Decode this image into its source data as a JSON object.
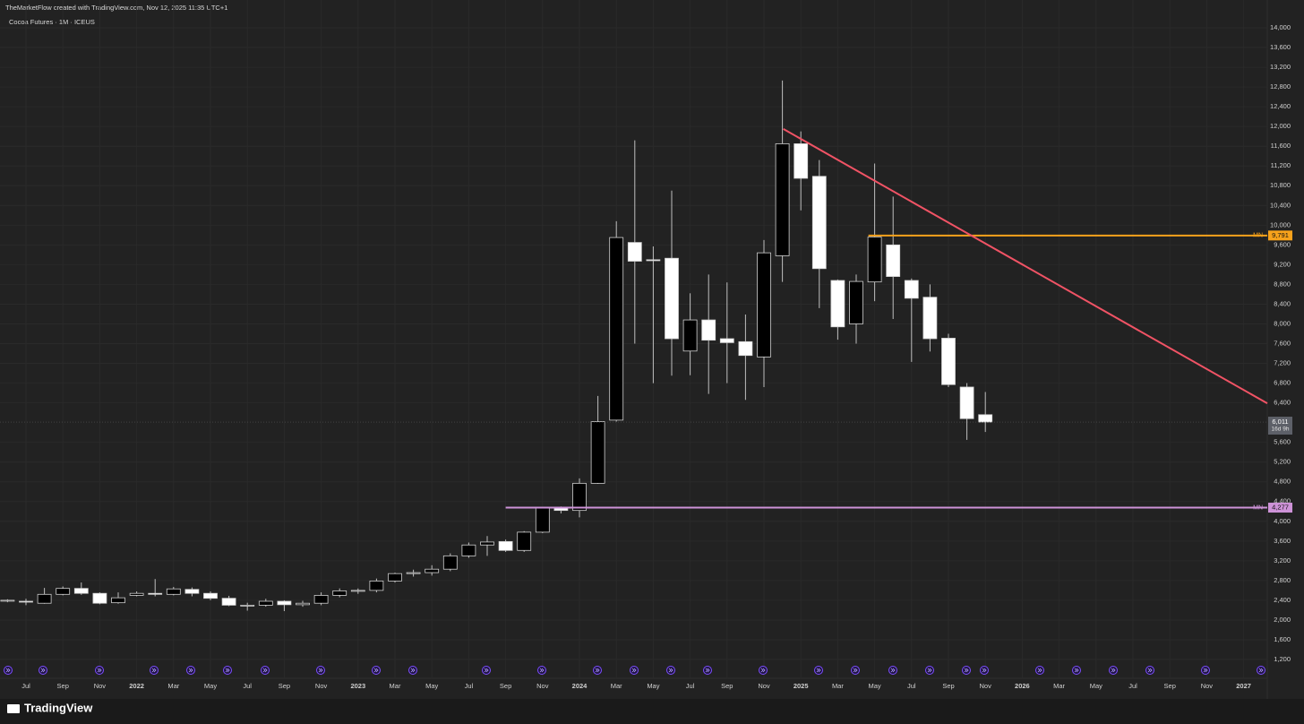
{
  "header": "TheMarketFlow created with TradingView.com, Nov 12, 2025 11:35 UTC+1",
  "footer": "TradingView",
  "chart_data": {
    "type": "candlestick",
    "title": "Cocoa Futures · 1M · ICEUS",
    "x_labels": [
      "Jul",
      "Sep",
      "Nov",
      "2022",
      "Mar",
      "May",
      "Jul",
      "Sep",
      "Nov",
      "2023",
      "Mar",
      "May",
      "Jul",
      "Sep",
      "Nov",
      "2024",
      "Mar",
      "May",
      "Jul",
      "Sep",
      "Nov",
      "2025",
      "Mar",
      "May",
      "Jul",
      "Sep",
      "Nov",
      "2026",
      "Mar",
      "May",
      "Jul",
      "Sep",
      "Nov",
      "2027"
    ],
    "open": [
      2390,
      2380,
      2340,
      2520,
      2640,
      2540,
      2350,
      2500,
      2540,
      2520,
      2620,
      2540,
      2440,
      2300,
      2300,
      2380,
      2310,
      2340,
      2500,
      2590,
      2600,
      2790,
      2940,
      2960,
      3030,
      3300,
      3520,
      3590,
      3410,
      3780,
      4270,
      4220,
      4770,
      6050,
      9650,
      9300,
      9330,
      7450,
      8080,
      7700,
      7640,
      7330,
      9380,
      11650,
      10990,
      8880,
      8000,
      8850,
      9600,
      8880,
      8540,
      7710,
      6720,
      6160
    ],
    "high": [
      2420,
      2430,
      2650,
      2680,
      2760,
      2560,
      2560,
      2580,
      2830,
      2670,
      2660,
      2580,
      2490,
      2350,
      2430,
      2400,
      2390,
      2560,
      2640,
      2640,
      2840,
      2960,
      3020,
      3110,
      3350,
      3570,
      3700,
      3630,
      3800,
      4290,
      4300,
      4870,
      6540,
      10080,
      11720,
      9570,
      10700,
      8620,
      9000,
      8840,
      8190,
      9700,
      12930,
      11900,
      11320,
      8900,
      9000,
      11250,
      10580,
      8920,
      8800,
      7800,
      6800,
      6620
    ],
    "low": [
      2360,
      2300,
      2330,
      2500,
      2510,
      2320,
      2330,
      2480,
      2480,
      2500,
      2480,
      2400,
      2280,
      2190,
      2270,
      2180,
      2270,
      2300,
      2460,
      2530,
      2560,
      2760,
      2880,
      2900,
      2990,
      3260,
      3300,
      3380,
      3380,
      3760,
      4160,
      4080,
      4760,
      6020,
      7600,
      6800,
      6950,
      6960,
      6580,
      6800,
      6460,
      6720,
      8850,
      10300,
      8320,
      7680,
      7600,
      8460,
      8100,
      7230,
      7440,
      6720,
      5650,
      5810
    ],
    "close": [
      2400,
      2370,
      2520,
      2640,
      2540,
      2340,
      2450,
      2540,
      2520,
      2630,
      2540,
      2440,
      2300,
      2300,
      2380,
      2310,
      2340,
      2500,
      2590,
      2600,
      2790,
      2940,
      2960,
      3030,
      3300,
      3520,
      3580,
      3410,
      3780,
      4270,
      4220,
      4770,
      6020,
      9750,
      9270,
      9280,
      7700,
      8080,
      7670,
      7620,
      7360,
      9440,
      11650,
      10950,
      9120,
      7940,
      8860,
      9760,
      8960,
      8520,
      7700,
      6770,
      6080,
      6011
    ],
    "up_color": "#000000",
    "down_color": "#ffffff",
    "ylim": [
      1200,
      14000
    ],
    "yticks": [
      {
        "value": 1200,
        "label": "1,200"
      },
      {
        "value": 1600,
        "label": "1,600"
      },
      {
        "value": 2000,
        "label": "2,000"
      },
      {
        "value": 2400,
        "label": "2,400"
      },
      {
        "value": 2800,
        "label": "2,800"
      },
      {
        "value": 3200,
        "label": "3,200"
      },
      {
        "value": 3600,
        "label": "3,600"
      },
      {
        "value": 4000,
        "label": "4,000"
      },
      {
        "value": 4400,
        "label": "4,400"
      },
      {
        "value": 4800,
        "label": "4,800"
      },
      {
        "value": 5200,
        "label": "5,200"
      },
      {
        "value": 5600,
        "label": "5,600"
      },
      {
        "value": 6400,
        "label": "6,400"
      },
      {
        "value": 6800,
        "label": "6,800"
      },
      {
        "value": 7200,
        "label": "7,200"
      },
      {
        "value": 7600,
        "label": "7,600"
      },
      {
        "value": 8000,
        "label": "8,000"
      },
      {
        "value": 8400,
        "label": "8,400"
      },
      {
        "value": 8800,
        "label": "8,800"
      },
      {
        "value": 9200,
        "label": "9,200"
      },
      {
        "value": 9600,
        "label": "9,600"
      },
      {
        "value": 10000,
        "label": "10,000"
      },
      {
        "value": 10400,
        "label": "10,400"
      },
      {
        "value": 10800,
        "label": "10,800"
      },
      {
        "value": 11200,
        "label": "11,200"
      },
      {
        "value": 11600,
        "label": "11,600"
      },
      {
        "value": 12000,
        "label": "12,000"
      },
      {
        "value": 12400,
        "label": "12,400"
      },
      {
        "value": 12800,
        "label": "12,800"
      },
      {
        "value": 13200,
        "label": "13,200"
      },
      {
        "value": 13600,
        "label": "13,600"
      },
      {
        "value": 14000,
        "label": "14,000"
      }
    ],
    "grid": true,
    "levels": [
      {
        "name": "MN",
        "value": 9791,
        "label": "9,791",
        "color": "#f7a21b"
      },
      {
        "name": "MN",
        "value": 4277,
        "label": "4,277",
        "color": "#ce93d8"
      }
    ],
    "trendline": {
      "start": 11950,
      "end": 6390,
      "color": "#f05365"
    },
    "last_price": {
      "value": 6011,
      "label": "6,011",
      "countdown": "16d 9h"
    }
  }
}
